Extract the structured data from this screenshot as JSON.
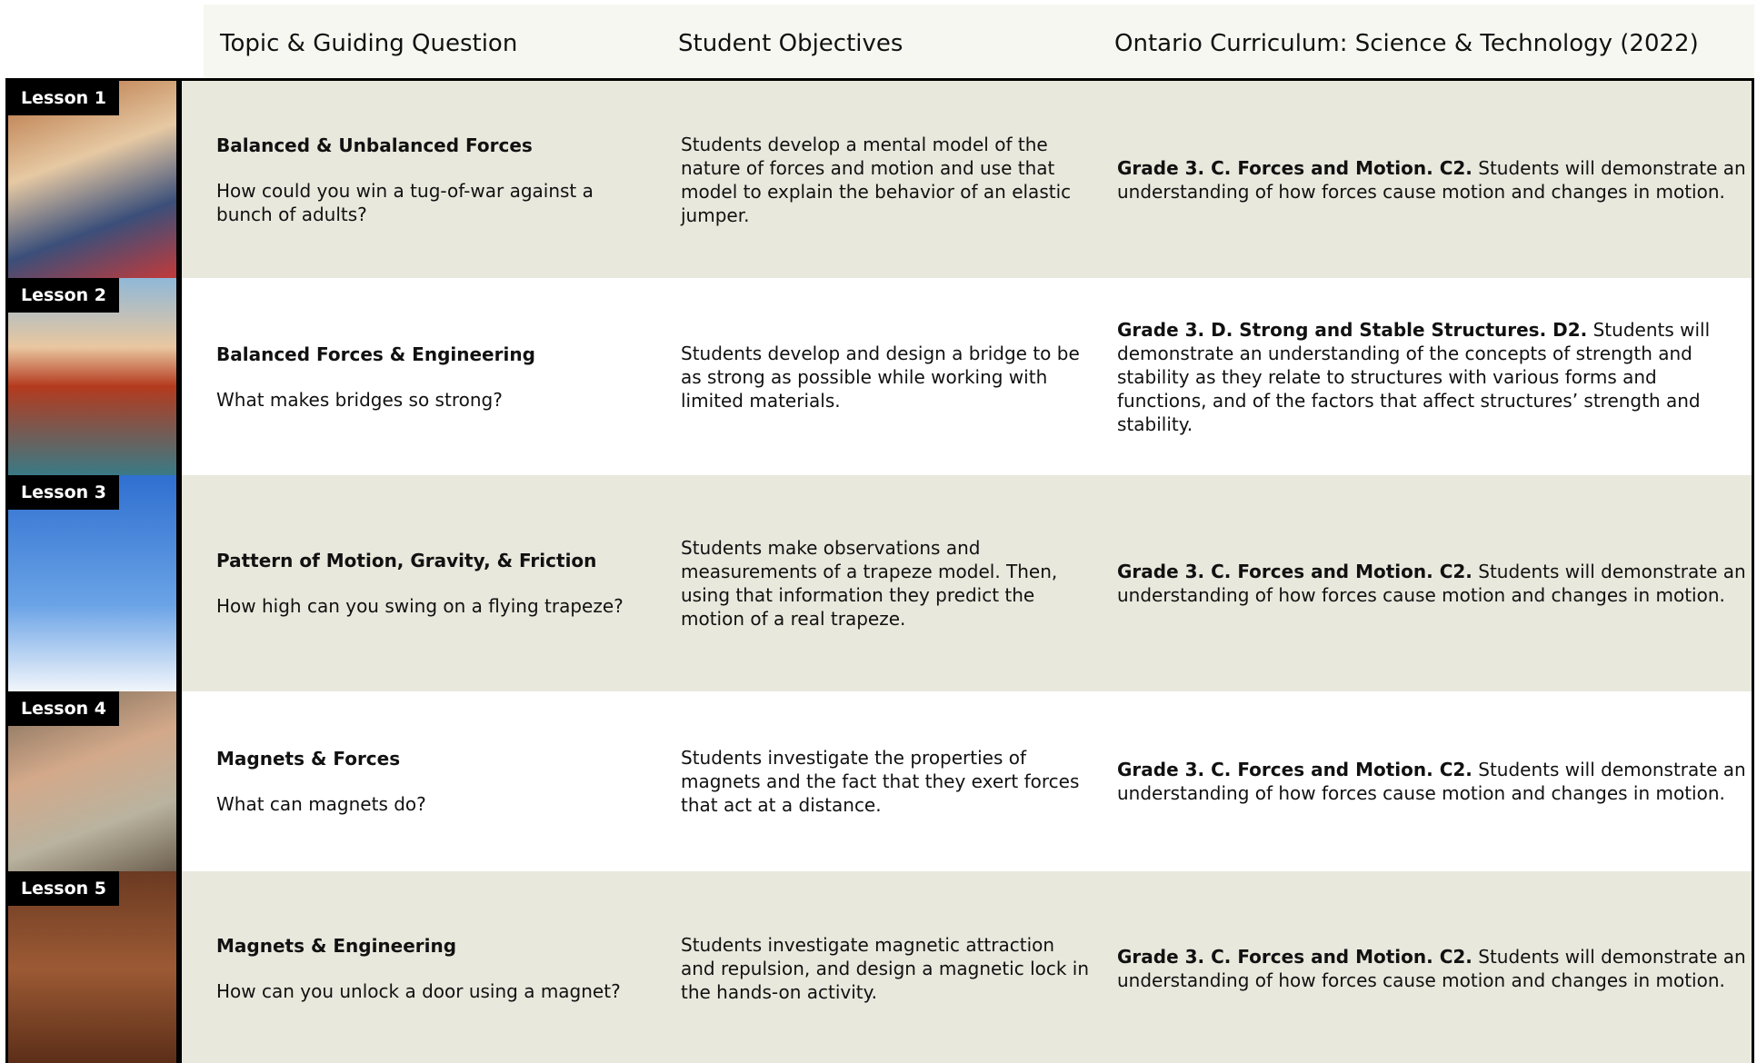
{
  "header": {
    "columns": [
      "Topic & Guiding Question",
      "Student Objectives",
      "Ontario Curriculum: Science & Technology (2022)"
    ]
  },
  "rows": [
    {
      "lesson": "Lesson 1",
      "topic": "Balanced & Unbalanced Forces",
      "question": "How could you win a tug-of-war against a bunch of adults?",
      "objectives": "Students develop a mental model of the nature of forces and motion and use that model to explain the behavior of an elastic jumper.",
      "curriculum_bold": "Grade 3. C. Forces and Motion. C2.",
      "curriculum_text": "Students will demonstrate an understanding of how forces cause motion and changes in motion."
    },
    {
      "lesson": "Lesson 2",
      "topic": "Balanced Forces & Engineering",
      "question": "What makes bridges so strong?",
      "objectives": "Students develop and design a bridge to be as strong as possible while working with limited materials.",
      "curriculum_bold": "Grade 3. D. Strong and Stable Structures. D2.",
      "curriculum_text": "Students will demonstrate an understanding of the concepts of strength and stability as they relate to structures with various forms and functions, and of the factors that affect structures’ strength and stability."
    },
    {
      "lesson": "Lesson 3",
      "topic": "Pattern of Motion, Gravity, & Friction",
      "question": "How high can you swing on a flying trapeze?",
      "objectives": "Students make observations and measurements of a trapeze model. Then, using that information they predict the motion of a real trapeze.",
      "curriculum_bold": "Grade 3. C. Forces and Motion. C2.",
      "curriculum_text": "Students will demonstrate an understanding of how forces cause motion and changes in motion."
    },
    {
      "lesson": "Lesson 4",
      "topic": "Magnets & Forces",
      "question": "What can magnets do?",
      "objectives": "Students investigate the properties of magnets and the fact that they exert forces that act at a distance.",
      "curriculum_bold": "Grade 3. C. Forces and Motion. C2.",
      "curriculum_text": "Students will demonstrate an understanding of how forces cause motion and changes in motion."
    },
    {
      "lesson": "Lesson 5",
      "topic": "Magnets & Engineering",
      "question": "How can you unlock a door using a magnet?",
      "objectives": "Students investigate magnetic attraction and repulsion, and design a magnetic lock in the hands-on activity.",
      "curriculum_bold": "Grade 3. C. Forces and Motion. C2.",
      "curriculum_text": "Students will demonstrate an understanding of how forces cause motion and changes in motion."
    }
  ]
}
